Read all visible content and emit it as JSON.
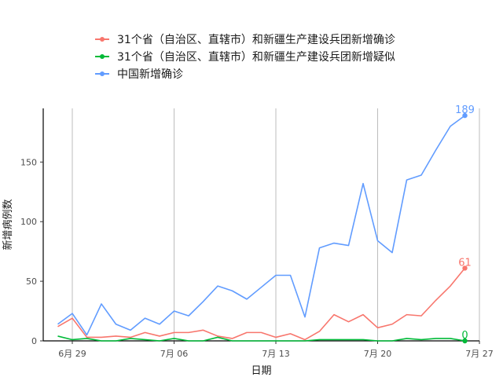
{
  "chart_data": {
    "type": "line",
    "xlabel": "日期",
    "ylabel": "新增病例数",
    "ylim": [
      0,
      195
    ],
    "xlim": [
      "2020-06-27",
      "2020-07-27"
    ],
    "x_ticks": [
      {
        "date": "2020-06-29",
        "label": "6月 29"
      },
      {
        "date": "2020-07-06",
        "label": "7月 06"
      },
      {
        "date": "2020-07-13",
        "label": "7月 13"
      },
      {
        "date": "2020-07-20",
        "label": "7月 20"
      },
      {
        "date": "2020-07-27",
        "label": "7月 27"
      }
    ],
    "y_ticks": [
      0,
      50,
      100,
      150
    ],
    "legend_position": "top",
    "grid": {
      "vertical": true,
      "horizontal": false
    },
    "x": [
      "2020-06-28",
      "2020-06-29",
      "2020-06-30",
      "2020-07-01",
      "2020-07-02",
      "2020-07-03",
      "2020-07-04",
      "2020-07-05",
      "2020-07-06",
      "2020-07-07",
      "2020-07-08",
      "2020-07-09",
      "2020-07-10",
      "2020-07-11",
      "2020-07-12",
      "2020-07-13",
      "2020-07-14",
      "2020-07-15",
      "2020-07-16",
      "2020-07-17",
      "2020-07-18",
      "2020-07-19",
      "2020-07-20",
      "2020-07-21",
      "2020-07-22",
      "2020-07-23",
      "2020-07-24",
      "2020-07-25",
      "2020-07-26"
    ],
    "series": [
      {
        "name": "31个省（自治区、直辖市）和新疆生产建设兵团新增确诊",
        "color": "#F8766D",
        "values": [
          12,
          19,
          3,
          3,
          4,
          3,
          7,
          4,
          7,
          7,
          9,
          4,
          2,
          7,
          7,
          3,
          6,
          1,
          8,
          22,
          16,
          22,
          11,
          14,
          22,
          21,
          34,
          46,
          61
        ],
        "end_label": "61"
      },
      {
        "name": "31个省（自治区、直辖市）和新疆生产建设兵团新增疑似",
        "color": "#00BA38",
        "values": [
          4,
          1,
          2,
          0,
          0,
          2,
          1,
          0,
          2,
          0,
          0,
          3,
          0,
          0,
          0,
          0,
          0,
          0,
          1,
          1,
          1,
          1,
          0,
          0,
          2,
          1,
          2,
          2,
          0
        ],
        "end_label": "0"
      },
      {
        "name": "中国新增确诊",
        "color": "#619CFF",
        "values": [
          14,
          23,
          5,
          31,
          14,
          9,
          19,
          14,
          25,
          21,
          33,
          46,
          42,
          35,
          45,
          55,
          55,
          20,
          78,
          82,
          80,
          132,
          84,
          74,
          135,
          139,
          160,
          180,
          189
        ],
        "end_label": "189"
      }
    ]
  }
}
